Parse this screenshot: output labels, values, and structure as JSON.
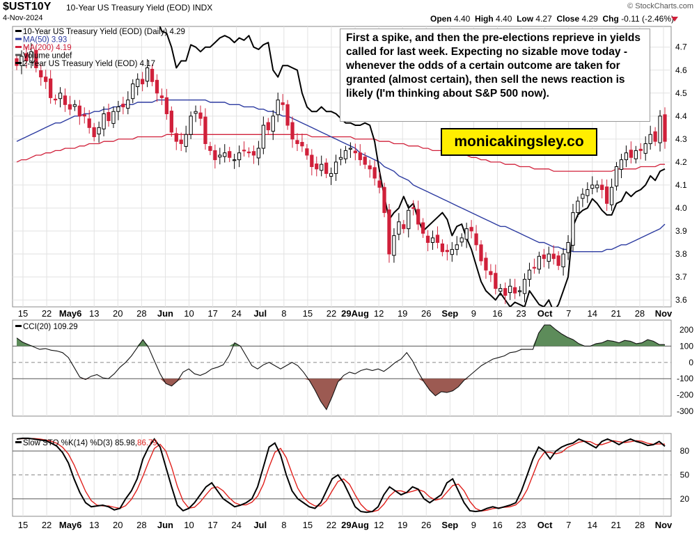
{
  "header": {
    "symbol": "$UST10Y",
    "name": "10-Year US Treasury Yield (EOD) INDX",
    "date": "4-Nov-2024",
    "credit": "© StockCharts.com",
    "open_label": "Open",
    "open": "4.40",
    "high_label": "High",
    "high": "4.40",
    "low_label": "Low",
    "low": "4.27",
    "close_label": "Close",
    "close": "4.29",
    "chg_label": "Chg",
    "chg": "-0.11 (-2.46%)"
  },
  "annotation": {
    "text": "First a spike, and then the pre-elections reprieve in yields called for last week. Expecting no sizable move today - whenever the odds of a certain outcome are taken for granted (almost certain), then sell the news reaction is likely (I'm thinking about S&P 500 now).",
    "brand": "monicakingsley.co"
  },
  "colors": {
    "up": "#000000",
    "down": "#d0203a",
    "ma50": "#2b3aa0",
    "ma200": "#d0203a",
    "us2y": "#000000",
    "cci_pos": "#5d8c5a",
    "cci_neg": "#9c5a52",
    "stoch_d": "#e0201c"
  },
  "chart_data": [
    {
      "type": "candlestick",
      "title": "10-Year US Treasury Yield (EOD) (Daily)",
      "legend": [
        {
          "label": "10-Year US Treasury Yield (EOD) (Daily)",
          "value": "4.29"
        },
        {
          "label": "MA(50)",
          "value": "3.93"
        },
        {
          "label": "MA(200)",
          "value": "4.19"
        },
        {
          "label": "Volume undef",
          "value": ""
        },
        {
          "label": "2-Year US Treasury Yield (EOD)",
          "value": "4.17"
        }
      ],
      "ylim": [
        3.57,
        4.79
      ],
      "yticks": [
        3.6,
        3.7,
        3.8,
        3.9,
        4.0,
        4.1,
        4.2,
        4.3,
        4.4,
        4.5,
        4.6,
        4.7
      ],
      "x_tick_labels": [
        {
          "label": "15",
          "bold": false
        },
        {
          "label": "22",
          "bold": false
        },
        {
          "label": "May6",
          "bold": true
        },
        {
          "label": "13",
          "bold": false
        },
        {
          "label": "20",
          "bold": false
        },
        {
          "label": "28",
          "bold": false
        },
        {
          "label": "Jun",
          "bold": true
        },
        {
          "label": "10",
          "bold": false
        },
        {
          "label": "17",
          "bold": false
        },
        {
          "label": "24",
          "bold": false
        },
        {
          "label": "Jul",
          "bold": true
        },
        {
          "label": "8",
          "bold": false
        },
        {
          "label": "15",
          "bold": false
        },
        {
          "label": "22",
          "bold": false
        },
        {
          "label": "29Aug",
          "bold": true
        },
        {
          "label": "12",
          "bold": false
        },
        {
          "label": "19",
          "bold": false
        },
        {
          "label": "26",
          "bold": false
        },
        {
          "label": "Sep",
          "bold": true
        },
        {
          "label": "9",
          "bold": false
        },
        {
          "label": "16",
          "bold": false
        },
        {
          "label": "23",
          "bold": false
        },
        {
          "label": "Oct",
          "bold": true
        },
        {
          "label": "7",
          "bold": false
        },
        {
          "label": "14",
          "bold": false
        },
        {
          "label": "21",
          "bold": false
        },
        {
          "label": "28",
          "bold": false
        },
        {
          "label": "Nov",
          "bold": true
        }
      ],
      "close_series": [
        4.62,
        4.66,
        4.64,
        4.68,
        4.61,
        4.57,
        4.55,
        4.48,
        4.47,
        4.5,
        4.45,
        4.43,
        4.45,
        4.4,
        4.4,
        4.35,
        4.31,
        4.35,
        4.41,
        4.38,
        4.42,
        4.44,
        4.44,
        4.47,
        4.54,
        4.56,
        4.54,
        4.61,
        4.55,
        4.5,
        4.48,
        4.41,
        4.33,
        4.29,
        4.28,
        4.32,
        4.4,
        4.42,
        4.39,
        4.28,
        4.25,
        4.21,
        4.23,
        4.24,
        4.22,
        4.21,
        4.24,
        4.25,
        4.24,
        4.23,
        4.26,
        4.36,
        4.34,
        4.4,
        4.47,
        4.45,
        4.36,
        4.3,
        4.28,
        4.27,
        4.23,
        4.18,
        4.17,
        4.19,
        4.15,
        4.15,
        4.2,
        4.22,
        4.25,
        4.26,
        4.24,
        4.21,
        4.19,
        4.17,
        4.13,
        4.09,
        3.98,
        3.8,
        3.88,
        3.94,
        3.91,
        3.99,
        4.0,
        3.93,
        3.89,
        3.85,
        3.87,
        3.85,
        3.81,
        3.81,
        3.82,
        3.84,
        3.87,
        3.91,
        3.9,
        3.84,
        3.77,
        3.73,
        3.71,
        3.65,
        3.65,
        3.62,
        3.66,
        3.63,
        3.64,
        3.69,
        3.73,
        3.74,
        3.79,
        3.78,
        3.8,
        3.78,
        3.75,
        3.8,
        3.85,
        3.98,
        4.03,
        4.06,
        4.08,
        4.1,
        4.1,
        4.08,
        4.02,
        4.09,
        4.18,
        4.21,
        4.24,
        4.22,
        4.25,
        4.25,
        4.28,
        4.32,
        4.29,
        4.4,
        4.29
      ],
      "series_2y": [
        4.97,
        4.95,
        4.94,
        4.93,
        4.92,
        4.88,
        4.87,
        4.84,
        4.83,
        4.86,
        4.84,
        4.83,
        4.85,
        4.83,
        4.83,
        4.81,
        4.81,
        4.85,
        4.87,
        4.83,
        4.89,
        4.91,
        4.94,
        4.93,
        4.96,
        4.97,
        4.98,
        4.97,
        4.89,
        4.82,
        4.77,
        4.76,
        4.7,
        4.61,
        4.64,
        4.64,
        4.71,
        4.7,
        4.68,
        4.7,
        4.7,
        4.72,
        4.74,
        4.75,
        4.74,
        4.72,
        4.74,
        4.73,
        4.75,
        4.7,
        4.69,
        4.71,
        4.72,
        4.6,
        4.57,
        4.62,
        4.62,
        4.61,
        4.6,
        4.5,
        4.44,
        4.42,
        4.42,
        4.44,
        4.42,
        4.42,
        4.41,
        4.39,
        4.37,
        4.37,
        4.36,
        4.36,
        4.37,
        4.36,
        4.29,
        4.16,
        4.05,
        3.95,
        3.98,
        4.0,
        4.05,
        4.0,
        4.02,
        3.95,
        3.9,
        3.92,
        3.94,
        3.96,
        3.98,
        3.95,
        3.88,
        3.92,
        3.93,
        3.87,
        3.82,
        3.75,
        3.68,
        3.64,
        3.62,
        3.6,
        3.63,
        3.6,
        3.57,
        3.59,
        3.58,
        3.57,
        3.64,
        3.61,
        3.58,
        3.57,
        3.6,
        3.55,
        3.58,
        3.64,
        3.7,
        3.92,
        3.97,
        3.99,
        4.0,
        4.04,
        4.02,
        3.99,
        3.97,
        3.97,
        4.02,
        4.03,
        4.07,
        4.05,
        4.07,
        4.08,
        4.1,
        4.14,
        4.12,
        4.16,
        4.17
      ],
      "ma50": [
        4.29,
        4.3,
        4.31,
        4.32,
        4.33,
        4.34,
        4.35,
        4.36,
        4.37,
        4.37,
        4.38,
        4.39,
        4.4,
        4.4,
        4.41,
        4.41,
        4.42,
        4.42,
        4.43,
        4.43,
        4.44,
        4.44,
        4.45,
        4.45,
        4.45,
        4.46,
        4.46,
        4.46,
        4.46,
        4.47,
        4.47,
        4.47,
        4.47,
        4.47,
        4.47,
        4.47,
        4.47,
        4.47,
        4.47,
        4.47,
        4.46,
        4.46,
        4.46,
        4.46,
        4.45,
        4.45,
        4.45,
        4.44,
        4.44,
        4.44,
        4.43,
        4.43,
        4.42,
        4.42,
        4.41,
        4.4,
        4.4,
        4.39,
        4.38,
        4.37,
        4.36,
        4.35,
        4.34,
        4.33,
        4.32,
        4.31,
        4.3,
        4.29,
        4.28,
        4.27,
        4.26,
        4.24,
        4.23,
        4.22,
        4.21,
        4.2,
        4.18,
        4.17,
        4.16,
        4.14,
        4.13,
        4.12,
        4.1,
        4.09,
        4.08,
        4.07,
        4.06,
        4.05,
        4.04,
        4.03,
        4.02,
        4.01,
        4.0,
        3.99,
        3.98,
        3.97,
        3.96,
        3.95,
        3.94,
        3.93,
        3.92,
        3.92,
        3.91,
        3.9,
        3.89,
        3.88,
        3.87,
        3.86,
        3.85,
        3.85,
        3.84,
        3.83,
        3.83,
        3.82,
        3.82,
        3.81,
        3.81,
        3.81,
        3.81,
        3.81,
        3.81,
        3.81,
        3.82,
        3.82,
        3.83,
        3.84,
        3.84,
        3.85,
        3.86,
        3.87,
        3.88,
        3.89,
        3.9,
        3.91,
        3.93
      ],
      "ma200": [
        4.2,
        4.21,
        4.21,
        4.22,
        4.23,
        4.23,
        4.24,
        4.24,
        4.25,
        4.25,
        4.26,
        4.26,
        4.26,
        4.27,
        4.27,
        4.28,
        4.28,
        4.28,
        4.29,
        4.29,
        4.29,
        4.3,
        4.3,
        4.3,
        4.3,
        4.31,
        4.31,
        4.31,
        4.31,
        4.31,
        4.31,
        4.32,
        4.32,
        4.32,
        4.32,
        4.32,
        4.32,
        4.32,
        4.32,
        4.32,
        4.32,
        4.32,
        4.32,
        4.32,
        4.32,
        4.32,
        4.32,
        4.32,
        4.32,
        4.32,
        4.32,
        4.32,
        4.32,
        4.32,
        4.32,
        4.32,
        4.32,
        4.32,
        4.32,
        4.32,
        4.32,
        4.31,
        4.31,
        4.31,
        4.31,
        4.31,
        4.31,
        4.31,
        4.31,
        4.31,
        4.3,
        4.3,
        4.3,
        4.3,
        4.3,
        4.29,
        4.29,
        4.29,
        4.28,
        4.28,
        4.28,
        4.27,
        4.27,
        4.27,
        4.26,
        4.26,
        4.25,
        4.25,
        4.25,
        4.24,
        4.24,
        4.24,
        4.23,
        4.23,
        4.22,
        4.22,
        4.21,
        4.21,
        4.2,
        4.2,
        4.2,
        4.19,
        4.19,
        4.19,
        4.18,
        4.18,
        4.18,
        4.17,
        4.17,
        4.17,
        4.17,
        4.16,
        4.16,
        4.16,
        4.16,
        4.16,
        4.16,
        4.16,
        4.16,
        4.16,
        4.16,
        4.16,
        4.16,
        4.16,
        4.17,
        4.17,
        4.17,
        4.17,
        4.17,
        4.18,
        4.18,
        4.18,
        4.18,
        4.19,
        4.19
      ]
    },
    {
      "type": "area",
      "title": "CCI(20)",
      "value_label": "109.29",
      "ylim": [
        -330,
        260
      ],
      "yticks": [
        200,
        100,
        0,
        -100,
        -200,
        -300
      ],
      "reference_lines": [
        100,
        0,
        -100
      ],
      "values": [
        150,
        125,
        110,
        95,
        80,
        85,
        75,
        70,
        60,
        30,
        -30,
        -90,
        -105,
        -85,
        -75,
        -95,
        -100,
        -70,
        -30,
        0,
        40,
        90,
        140,
        90,
        10,
        -70,
        -130,
        -145,
        -115,
        -60,
        -40,
        -70,
        -80,
        -65,
        -40,
        -30,
        -15,
        40,
        120,
        100,
        40,
        -20,
        -40,
        -15,
        0,
        -20,
        -40,
        -20,
        0,
        -20,
        -60,
        -110,
        -170,
        -240,
        -290,
        -210,
        -120,
        -80,
        -60,
        -70,
        -50,
        -40,
        -50,
        -40,
        -55,
        -30,
        0,
        20,
        60,
        10,
        -60,
        -120,
        -170,
        -205,
        -180,
        -185,
        -175,
        -150,
        -110,
        -80,
        -50,
        -20,
        0,
        20,
        30,
        40,
        60,
        65,
        80,
        80,
        80,
        180,
        230,
        230,
        200,
        175,
        155,
        140,
        115,
        100,
        100,
        115,
        120,
        135,
        130,
        120,
        135,
        130,
        115,
        120,
        140,
        130,
        110,
        109.29
      ]
    },
    {
      "type": "line",
      "title": "Slow STO %K(14) %D(3)",
      "series": [
        {
          "name": "%K(14)",
          "value_label": "85.98"
        },
        {
          "name": "%D(3)",
          "value_label": "86.79"
        }
      ],
      "ylim": [
        -2,
        102
      ],
      "yticks": [
        80,
        50,
        20
      ],
      "reference_lines": [
        80,
        50,
        20
      ],
      "k": [
        95,
        96,
        96,
        95,
        94,
        93,
        90,
        86,
        78,
        65,
        45,
        28,
        15,
        10,
        11,
        12,
        10,
        6,
        8,
        20,
        30,
        45,
        70,
        85,
        95,
        85,
        60,
        35,
        12,
        5,
        8,
        15,
        25,
        35,
        40,
        30,
        20,
        15,
        10,
        12,
        15,
        20,
        35,
        60,
        85,
        90,
        75,
        50,
        30,
        20,
        15,
        10,
        8,
        15,
        30,
        45,
        50,
        40,
        25,
        10,
        4,
        3,
        4,
        10,
        25,
        35,
        30,
        25,
        28,
        35,
        32,
        20,
        15,
        20,
        25,
        40,
        45,
        30,
        15,
        5,
        4,
        5,
        8,
        10,
        8,
        10,
        12,
        15,
        30,
        50,
        70,
        85,
        80,
        70,
        80,
        85,
        88,
        90,
        95,
        92,
        88,
        84,
        92,
        95,
        92,
        88,
        92,
        95,
        92,
        90,
        87,
        88,
        92,
        86
      ]
    }
  ]
}
